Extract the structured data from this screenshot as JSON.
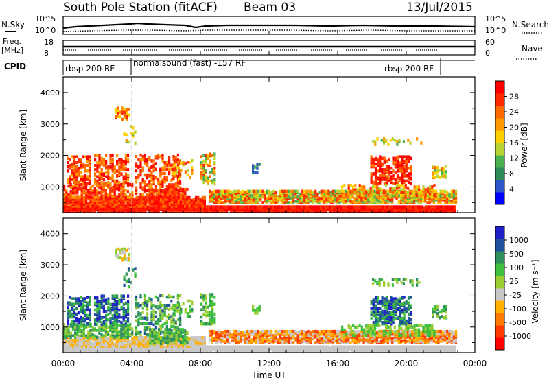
{
  "header": {
    "station": "South Pole Station (fitACF)",
    "beam": "Beam 03",
    "date": "13/Jul/2015"
  },
  "strips": {
    "nsky_label": "N.Sky",
    "nsky_ticks": [
      "10^5",
      "10^0"
    ],
    "nsearch_label": "N.Search",
    "freq_label_1": "Freq.",
    "freq_label_2": "[MHz]",
    "freq_ticks": [
      "18",
      "8"
    ],
    "nave_label": "Nave",
    "nave_ticks": [
      "60",
      "0"
    ],
    "cpid_label": "CPID",
    "cpid_segments": [
      "rbsp 200 RF",
      "normalsound (fast) -157 RF",
      "rbsp 200 RF"
    ]
  },
  "colors": {
    "power_scale": [
      "#0000ff",
      "#2f56c8",
      "#2e8b57",
      "#4caf50",
      "#b8d430",
      "#ffd000",
      "#ff9a00",
      "#ff6a00",
      "#ff2a00",
      "#ff0000"
    ],
    "velocity_scale": [
      "#2020c8",
      "#2050a0",
      "#2f8f5f",
      "#3fbf3f",
      "#9acd32",
      "#c8c8c8",
      "#ffb000",
      "#ff7a00",
      "#ff3a00",
      "#ff0000"
    ]
  },
  "chart_data": [
    {
      "type": "heatmap",
      "name": "power",
      "ylabel": "Slant Range [km]",
      "yticks": [
        "1000",
        "2000",
        "3000",
        "4000"
      ],
      "ylim": [
        180,
        4500
      ],
      "xlim": [
        0,
        24
      ],
      "xticks": [
        "00:00",
        "04:00",
        "08:00",
        "12:00",
        "16:00",
        "20:00",
        "00:00"
      ],
      "colorbar_label": "Power [dB]",
      "colorbar_ticks": [
        "4",
        "8",
        "12",
        "16",
        "20",
        "24",
        "28"
      ],
      "mode_change_times": [
        4.0,
        21.9
      ]
    },
    {
      "type": "heatmap",
      "name": "velocity",
      "ylabel": "Slant Range [km]",
      "yticks": [
        "1000",
        "2000",
        "3000",
        "4000"
      ],
      "ylim": [
        180,
        4500
      ],
      "xlim": [
        0,
        24
      ],
      "xticks": [
        "00:00",
        "04:00",
        "08:00",
        "12:00",
        "16:00",
        "20:00",
        "00:00"
      ],
      "xlabel": "Time UT",
      "colorbar_label": "Velocity [m s⁻¹]",
      "colorbar_ticks": [
        "1000",
        "500",
        "100",
        "25",
        "-25",
        "-100",
        "-500",
        "-1000"
      ],
      "mode_change_times": [
        4.0,
        21.9
      ]
    }
  ]
}
